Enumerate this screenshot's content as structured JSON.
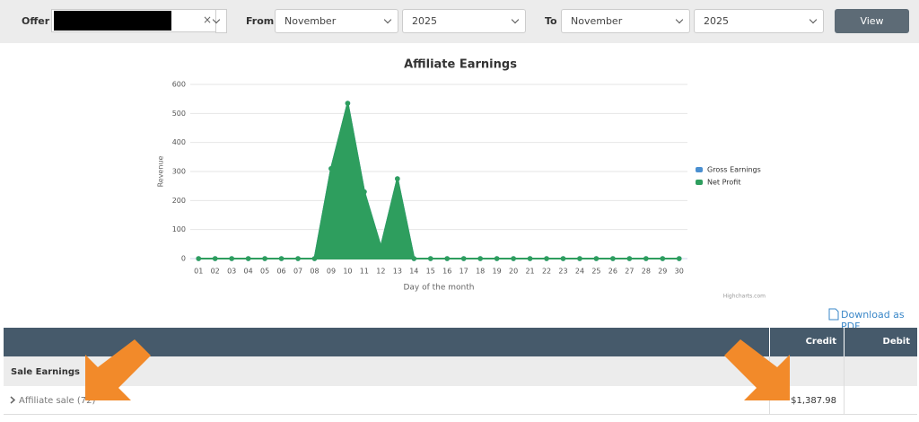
{
  "filters": {
    "offer_label": "Offer",
    "clear": "×",
    "from_label": "From",
    "from_month": "November",
    "from_year": "2025",
    "to_label": "To",
    "to_month": "November",
    "to_year": "2025",
    "button": "View"
  },
  "chart_data": {
    "type": "area",
    "title": "Affiliate Earnings",
    "x_label": "Day of the month",
    "y_label": "Revenue",
    "credits": "Highcharts.com",
    "categories": [
      "01",
      "02",
      "03",
      "04",
      "05",
      "06",
      "07",
      "08",
      "09",
      "10",
      "11",
      "12",
      "13",
      "14",
      "15",
      "16",
      "17",
      "18",
      "19",
      "20",
      "21",
      "22",
      "23",
      "24",
      "25",
      "26",
      "27",
      "28",
      "29",
      "30"
    ],
    "series": [
      {
        "name": "Gross Earnings",
        "color": "#4a8fd0",
        "values": [
          0,
          0,
          0,
          0,
          0,
          0,
          0,
          0,
          310,
          535,
          230,
          40,
          275,
          0,
          0,
          0,
          0,
          0,
          0,
          0,
          0,
          0,
          0,
          0,
          0,
          0,
          0,
          0,
          0,
          0
        ]
      },
      {
        "name": "Net Profit",
        "color": "#2e9e5e",
        "values": [
          0,
          0,
          0,
          0,
          0,
          0,
          0,
          0,
          310,
          535,
          230,
          40,
          275,
          0,
          0,
          0,
          0,
          0,
          0,
          0,
          0,
          0,
          0,
          0,
          0,
          0,
          0,
          0,
          0,
          0
        ]
      }
    ],
    "ylim": [
      0,
      600
    ],
    "yticks": [
      0,
      100,
      200,
      300,
      400,
      500,
      600
    ],
    "grid": true,
    "legend": "right"
  },
  "download": "Download as PDF",
  "table": {
    "header": [
      "Credit",
      "Debit"
    ],
    "section": "Sale Earnings",
    "rows": [
      [
        "Affiliate sale (72)",
        "$1,387.98"
      ]
    ]
  }
}
